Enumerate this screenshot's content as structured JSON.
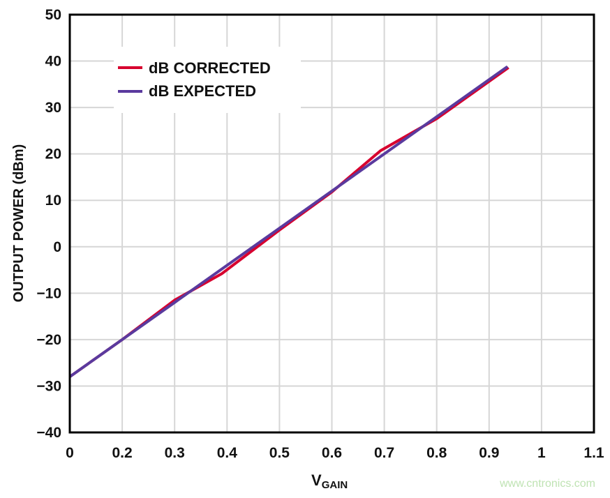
{
  "chart_data": {
    "type": "line",
    "title": "",
    "xlabel": "V",
    "xlabel_subscript": "GAIN",
    "ylabel": "OUTPUT POWER (dBm)",
    "x_ticks": [
      "0",
      "0.2",
      "0.3",
      "0.4",
      "0.5",
      "0.6",
      "0.7",
      "0.8",
      "0.9",
      "1",
      "1.1"
    ],
    "x_tick_values": [
      0,
      0.2,
      0.3,
      0.4,
      0.5,
      0.6,
      0.7,
      0.8,
      0.9,
      1.0,
      1.1
    ],
    "y_ticks": [
      "50",
      "40",
      "30",
      "20",
      "10",
      "0",
      "−10",
      "−20",
      "−30",
      "−40"
    ],
    "y_tick_values": [
      50,
      40,
      30,
      20,
      10,
      0,
      -10,
      -20,
      -30,
      -40
    ],
    "xlim": [
      0,
      1.1
    ],
    "ylim": [
      -40,
      50
    ],
    "grid": true,
    "legend_position": "top-left",
    "series": [
      {
        "name": "dB CORRECTED",
        "color": "#d7002e",
        "x": [
          0,
          0.2,
          0.3,
          0.39,
          0.5,
          0.6,
          0.693,
          0.8,
          0.937
        ],
        "y": [
          -28,
          -20,
          -11.5,
          -5.8,
          3.6,
          11.8,
          20.7,
          27.6,
          38.6
        ]
      },
      {
        "name": "dB EXPECTED",
        "color": "#5a3a9e",
        "x": [
          0,
          0.2,
          0.935
        ],
        "y": [
          -28,
          -20,
          38.8
        ]
      }
    ]
  },
  "watermark": "www.cntronics.com"
}
